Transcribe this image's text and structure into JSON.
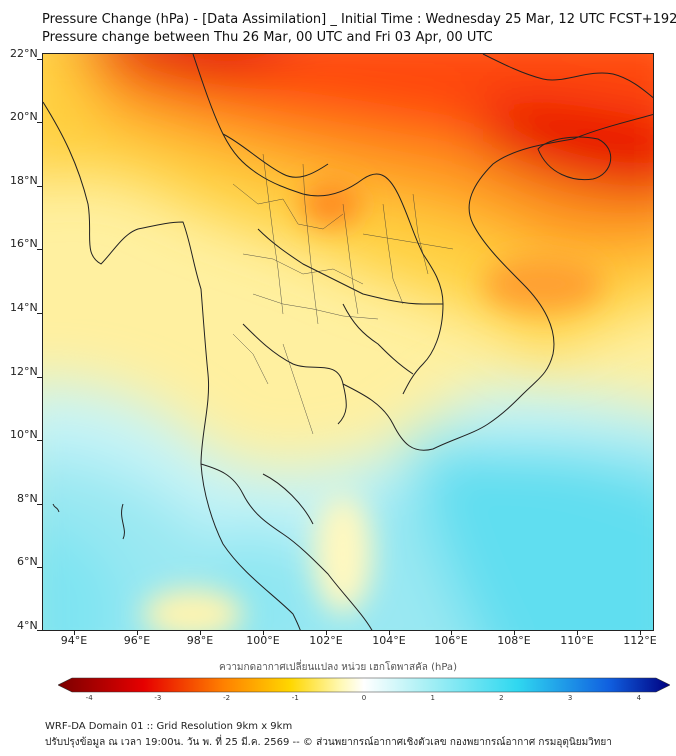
{
  "title_line1": "Pressure Change (hPa) - [Data Assimilation] _ Initial Time : Wednesday 25 Mar, 12 UTC FCST+192",
  "title_line2": "Pressure change between Thu 26 Mar, 00 UTC and Fri 03 Apr, 00 UTC",
  "map": {
    "lat_labels": [
      "22°N",
      "20°N",
      "18°N",
      "16°N",
      "14°N",
      "12°N",
      "10°N",
      "8°N",
      "6°N",
      "4°N"
    ],
    "lon_labels": [
      "94°E",
      "96°E",
      "98°E",
      "100°E",
      "102°E",
      "104°E",
      "106°E",
      "108°E",
      "110°E",
      "112°E"
    ],
    "lat_range": [
      4,
      22.2
    ],
    "lon_range": [
      93,
      112.4
    ]
  },
  "colorbar": {
    "title": "ความกดอากาศเปลี่ยนแปลง หน่วย เฮกโตพาสคัล (hPa)",
    "ticks": [
      "-4",
      "-3",
      "-2",
      "-1",
      "0",
      "1",
      "2",
      "3",
      "4"
    ],
    "range": [
      -4.25,
      4.25
    ],
    "colors": {
      "min": "#7a0000",
      "strong_negative": "#e60000",
      "negative": "#ff8000",
      "weak_negative": "#ffd700",
      "near_zero": "#fff8b0",
      "zero": "#ffffff",
      "weak_positive": "#aaf0f5",
      "positive": "#30d8f0",
      "strong_positive": "#1060e0",
      "max": "#000080"
    }
  },
  "footer_line1": "WRF-DA Domain 01 :: Grid Resolution 9km x 9km",
  "footer_line2": "ปรับปรุงข้อมูล ณ เวลา 19:00น. วัน พ. ที่ 25 มี.ค. 2569 -- © ส่วนพยากรณ์อากาศเชิงตัวเลข กองพยากรณ์อากาศ กรมอุตุนิยมวิทยา"
}
